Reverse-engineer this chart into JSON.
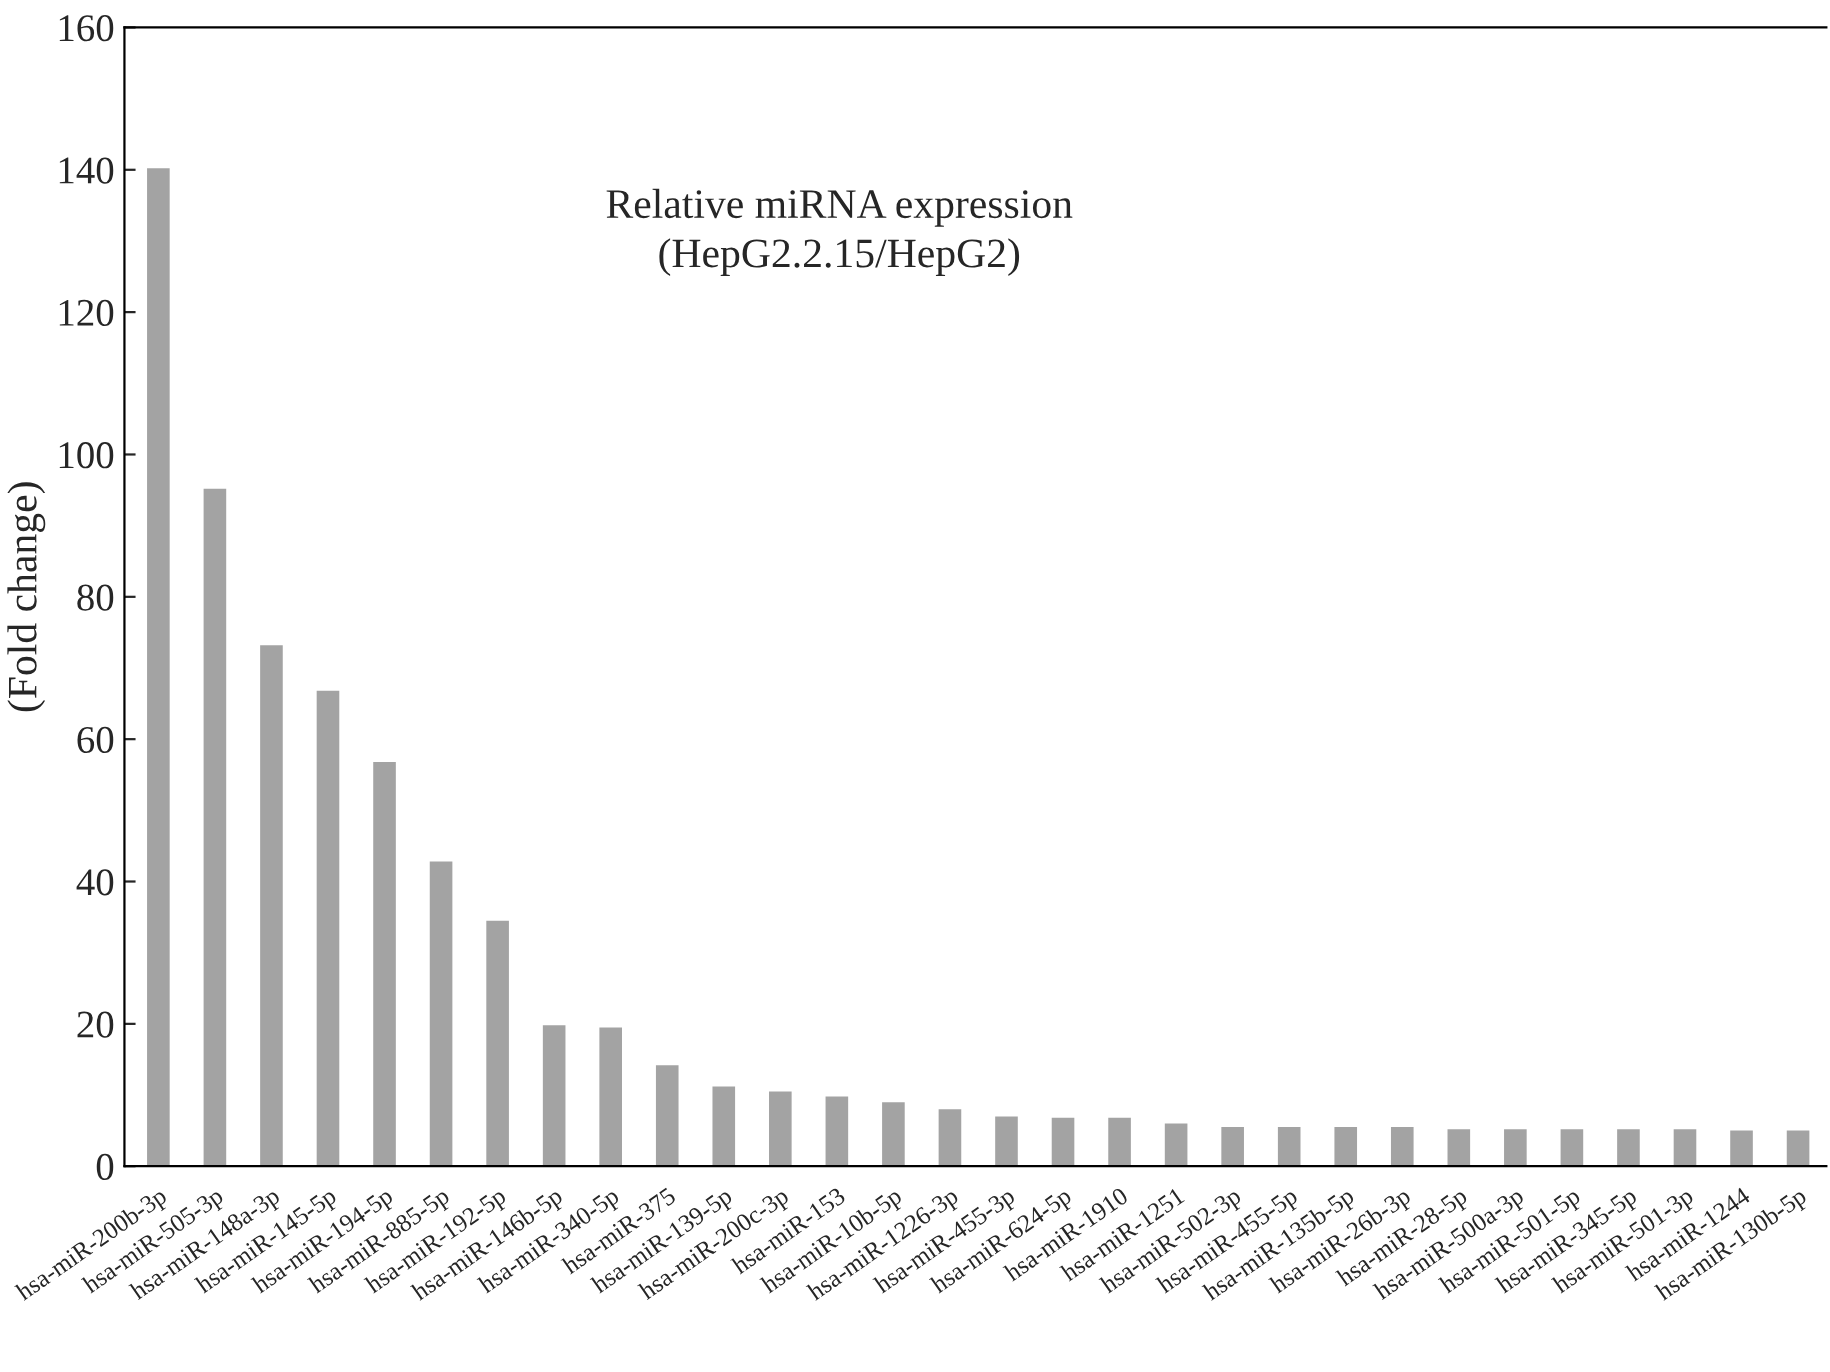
{
  "chart_data": {
    "type": "bar",
    "ylabel": "(Fold change)",
    "annotations": [
      "Relative miRNA expression\n(HepG2.2.15/HepG2)"
    ],
    "categories": [
      "hsa-miR-200b-3p",
      "hsa-miR-505-3p",
      "hsa-miR-148a-3p",
      "hsa-miR-145-5p",
      "hsa-miR-194-5p",
      "hsa-miR-885-5p",
      "hsa-miR-192-5p",
      "hsa-miR-146b-5p",
      "hsa-miR-340-5p",
      "hsa-miR-375",
      "hsa-miR-139-5p",
      "hsa-miR-200c-3p",
      "hsa-miR-153",
      "hsa-miR-10b-5p",
      "hsa-miR-1226-3p",
      "hsa-miR-455-3p",
      "hsa-miR-624-5p",
      "hsa-miR-1910",
      "hsa-miR-1251",
      "hsa-miR-502-3p",
      "hsa-miR-455-5p",
      "hsa-miR-135b-5p",
      "hsa-miR-26b-3p",
      "hsa-miR-28-5p",
      "hsa-miR-500a-3p",
      "hsa-miR-501-5p",
      "hsa-miR-345-5p",
      "hsa-miR-501-3p",
      "hsa-miR-1244",
      "hsa-miR-130b-5p"
    ],
    "values": [
      140.2,
      95.2,
      73.2,
      66.8,
      56.8,
      42.8,
      34.5,
      19.8,
      19.5,
      14.2,
      11.2,
      10.5,
      9.8,
      9.0,
      8.0,
      7.0,
      6.8,
      6.8,
      6.0,
      5.5,
      5.5,
      5.5,
      5.5,
      5.2,
      5.2,
      5.2,
      5.2,
      5.2,
      5.0,
      5.0
    ],
    "color": "#a3a3a3",
    "ylim": [
      0,
      160
    ],
    "yticks": [
      0,
      20,
      40,
      60,
      80,
      100,
      120,
      140,
      160
    ],
    "grid": false
  }
}
